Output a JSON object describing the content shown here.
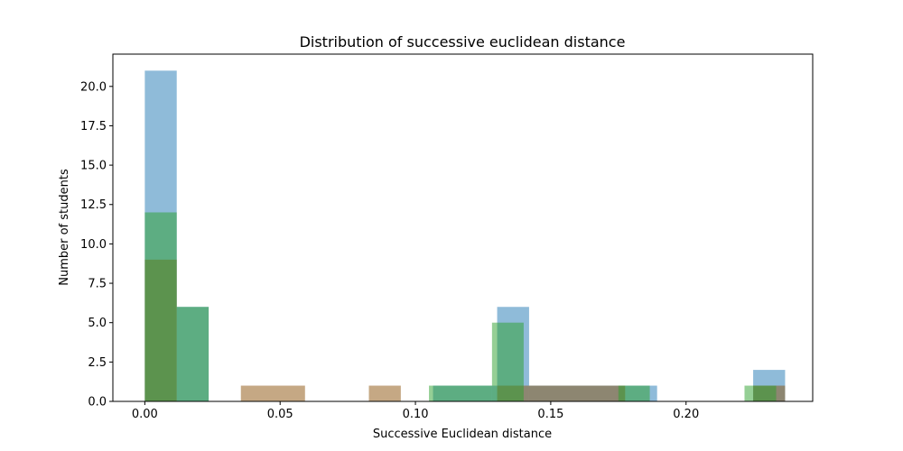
{
  "chart_data": {
    "type": "bar",
    "title": "Distribution of successive euclidean distance",
    "xlabel": "Successive Euclidean distance",
    "ylabel": "Number of students",
    "xlim": [
      -0.0118,
      0.2468
    ],
    "ylim": [
      0,
      22.05
    ],
    "xticks": [
      0.0,
      0.05,
      0.1,
      0.15,
      0.2
    ],
    "xtick_labels": [
      "0.00",
      "0.05",
      "0.10",
      "0.15",
      "0.20"
    ],
    "yticks": [
      0.0,
      2.5,
      5.0,
      7.5,
      10.0,
      12.5,
      15.0,
      17.5,
      20.0
    ],
    "ytick_labels": [
      "0.0",
      "2.5",
      "5.0",
      "7.5",
      "10.0",
      "12.5",
      "15.0",
      "17.5",
      "20.0"
    ],
    "grid": false,
    "legend": "none",
    "series": [
      {
        "color": "#1f77b4",
        "opacity": 0.5,
        "bars": [
          {
            "x0": 0.0,
            "x1": 0.0118,
            "value": 21
          },
          {
            "x0": 0.0118,
            "x1": 0.0236,
            "value": 6
          },
          {
            "x0": 0.1065,
            "x1": 0.1302,
            "value": 1
          },
          {
            "x0": 0.1302,
            "x1": 0.142,
            "value": 6
          },
          {
            "x0": 0.142,
            "x1": 0.1775,
            "value": 1
          },
          {
            "x0": 0.1775,
            "x1": 0.1893,
            "value": 1
          },
          {
            "x0": 0.2248,
            "x1": 0.2366,
            "value": 2
          }
        ]
      },
      {
        "color": "#8c510a",
        "opacity": 0.5,
        "bars": [
          {
            "x0": 0.0,
            "x1": 0.0118,
            "value": 9
          },
          {
            "x0": 0.0355,
            "x1": 0.0592,
            "value": 1
          },
          {
            "x0": 0.0828,
            "x1": 0.0946,
            "value": 1
          },
          {
            "x0": 0.1302,
            "x1": 0.1775,
            "value": 1
          },
          {
            "x0": 0.2248,
            "x1": 0.2366,
            "value": 1
          }
        ]
      },
      {
        "color": "#2ca02c",
        "opacity": 0.5,
        "bars": [
          {
            "x0": 0.0,
            "x1": 0.0118,
            "value": 12
          },
          {
            "x0": 0.0118,
            "x1": 0.0236,
            "value": 6
          },
          {
            "x0": 0.105,
            "x1": 0.1283,
            "value": 1
          },
          {
            "x0": 0.1283,
            "x1": 0.14,
            "value": 5
          },
          {
            "x0": 0.175,
            "x1": 0.1866,
            "value": 1
          },
          {
            "x0": 0.2216,
            "x1": 0.2333,
            "value": 1
          }
        ]
      }
    ]
  }
}
